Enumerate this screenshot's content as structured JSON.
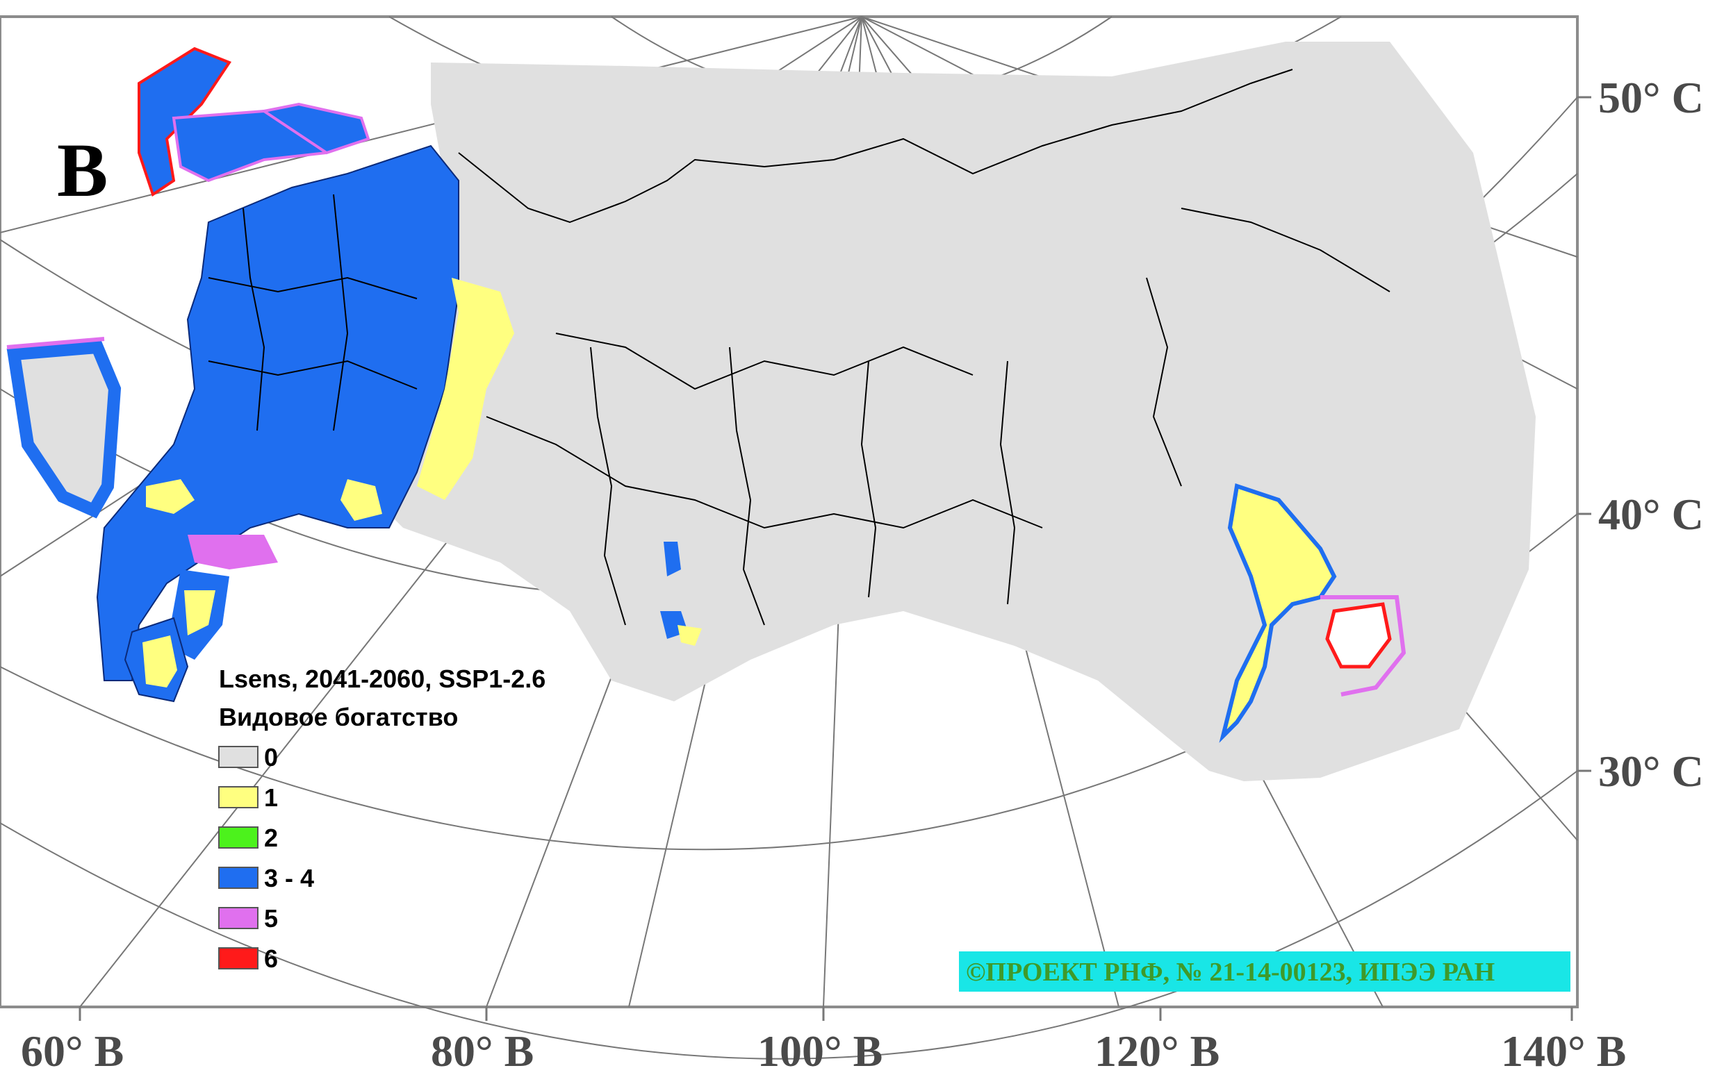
{
  "panel_letter": "B",
  "legend": {
    "line1": "Lsens, 2041-2060, SSP1-2.6",
    "line2": "Видовое богатство",
    "items": [
      {
        "label": "0",
        "color": "#e0e0e0"
      },
      {
        "label": "1",
        "color": "#ffff80"
      },
      {
        "label": "2",
        "color": "#4cf21c"
      },
      {
        "label": "3 - 4",
        "color": "#1f6ef0"
      },
      {
        "label": "5",
        "color": "#e070ee"
      },
      {
        "label": "6",
        "color": "#ff1a1a"
      }
    ]
  },
  "lat_labels": [
    "50° С",
    "40° С",
    "30° С"
  ],
  "lon_labels": [
    "60° В",
    "80° В",
    "100° В",
    "120° В",
    "140° В"
  ],
  "credit": "©ПРОЕКТ РНФ, № 21-14-00123, ИПЭЭ РАН",
  "colors": {
    "background_gray": "#e0e0e0",
    "richness_1": "#ffff80",
    "richness_2": "#4cf21c",
    "richness_3_4": "#1f6ef0",
    "richness_5": "#e070ee",
    "richness_6": "#ff1a1a",
    "credit_box": "#19e6e6",
    "credit_text": "#3f9a2a"
  }
}
